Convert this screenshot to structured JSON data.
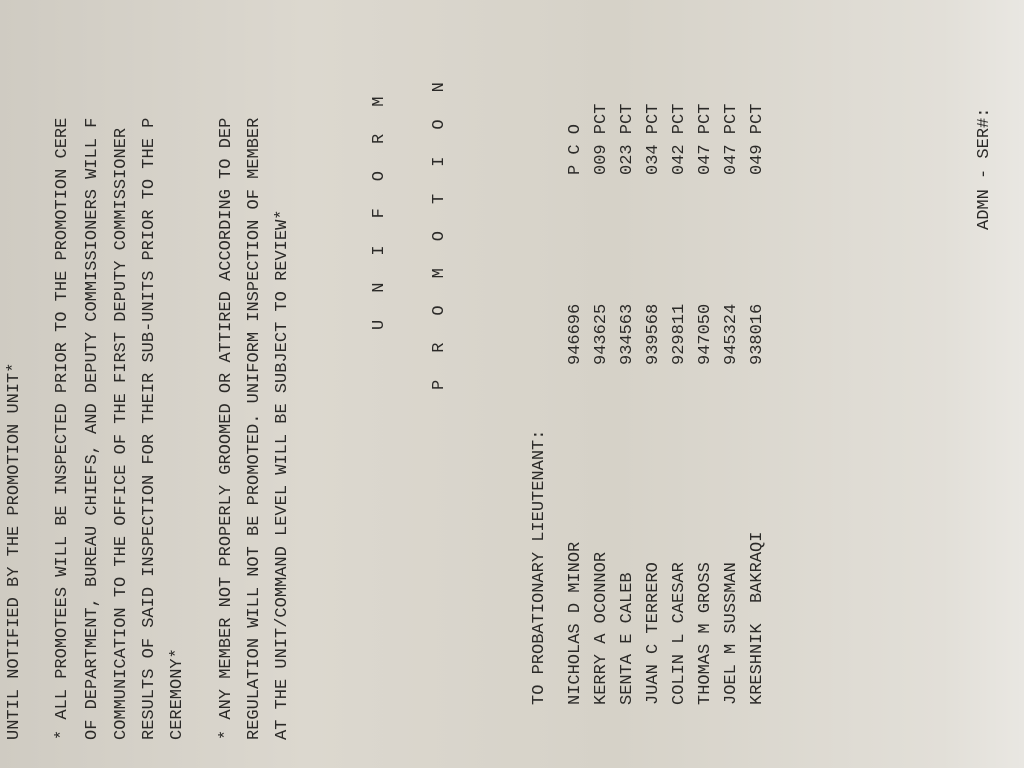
{
  "header_line": "UNTIL NOTIFIED BY THE PROMOTION UNIT*",
  "paragraph1": [
    "* ALL PROMOTEES WILL BE INSPECTED PRIOR TO THE PROMOTION CERE",
    "OF DEPARTMENT, BUREAU CHIEFS, AND DEPUTY COMMISSIONERS WILL F",
    "COMMUNICATION TO THE OFFICE OF THE FIRST DEPUTY COMMISSIONER",
    "RESULTS OF SAID INSPECTION FOR THEIR SUB-UNITS PRIOR TO THE P",
    "CEREMONY*"
  ],
  "paragraph2": [
    "* ANY MEMBER NOT PROPERLY GROOMED OR ATTIRED ACCORDING TO DEP",
    "REGULATION WILL NOT BE PROMOTED. UNIFORM INSPECTION OF MEMBER",
    "AT THE UNIT/COMMAND LEVEL WILL BE SUBJECT TO REVIEW*"
  ],
  "heading1": "UNIFORM",
  "heading2": "PROMOTION",
  "section_title": "TO PROBATIONARY LIEUTENANT:",
  "roster": [
    {
      "name": "NICHOLAS D MINOR",
      "id": "946696",
      "command": "P C O"
    },
    {
      "name": "KERRY A OCONNOR",
      "id": "943625",
      "command": "009 PCT"
    },
    {
      "name": "SENTA E CALEB",
      "id": "934563",
      "command": "023 PCT"
    },
    {
      "name": "JUAN C TERRERO",
      "id": "939568",
      "command": "034 PCT"
    },
    {
      "name": "COLIN L CAESAR",
      "id": "929811",
      "command": "042 PCT"
    },
    {
      "name": "THOMAS M GROSS",
      "id": "947050",
      "command": "047 PCT"
    },
    {
      "name": "JOEL M SUSSMAN",
      "id": "945324",
      "command": "047 PCT"
    },
    {
      "name": "KRESHNIK  BAKRAQI",
      "id": "938016",
      "command": "049 PCT"
    }
  ],
  "footer": "ADMN - SER#: "
}
